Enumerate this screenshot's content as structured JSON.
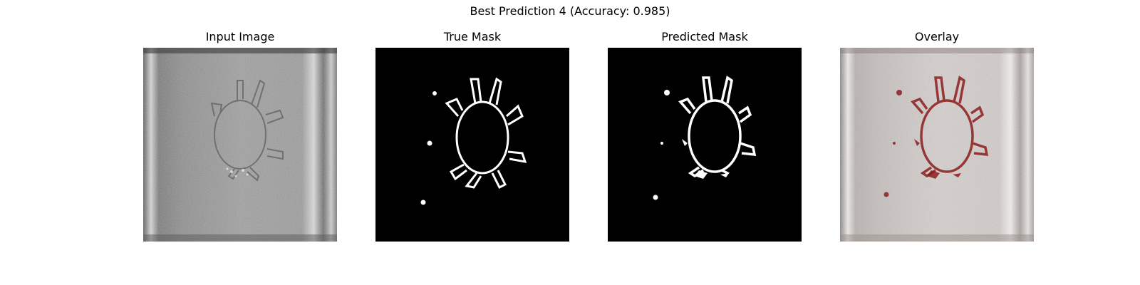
{
  "figure": {
    "suptitle": "Best Prediction 4 (Accuracy: 0.985)"
  },
  "panels": [
    {
      "title": "Input Image"
    },
    {
      "title": "True Mask"
    },
    {
      "title": "Predicted Mask"
    },
    {
      "title": "Overlay"
    }
  ],
  "colors": {
    "background": "#ffffff",
    "mask_bg": "#000000",
    "mask_fg": "#ffffff",
    "overlay_mark": "#8b1e1e",
    "photo_gray": "#9a9a9a"
  }
}
